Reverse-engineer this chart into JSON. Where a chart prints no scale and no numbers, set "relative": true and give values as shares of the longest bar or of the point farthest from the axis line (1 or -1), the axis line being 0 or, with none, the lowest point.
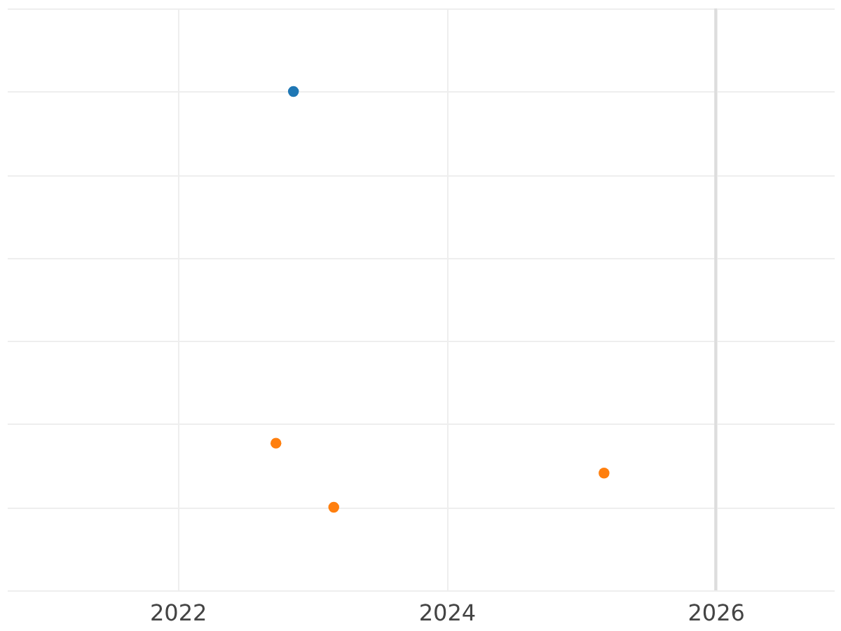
{
  "chart_data": {
    "type": "scatter",
    "relative": true,
    "series": [
      {
        "color": "#1f77b4",
        "x": [
          2022.86
        ],
        "values": [
          1
        ]
      },
      {
        "color": "#ff7f0e",
        "x": [
          2022.73,
          2023.16,
          2025.17
        ],
        "values": [
          0.154,
          0,
          0.082
        ]
      }
    ],
    "xlim": [
      2020.73,
      2026.88
    ],
    "xticks": [
      2022,
      2024,
      2026
    ],
    "grid": true,
    "marker": "circle",
    "legend": false,
    "ref_lines": [
      {
        "axis": "x",
        "value": 2026,
        "color": "#dddddd"
      }
    ]
  }
}
